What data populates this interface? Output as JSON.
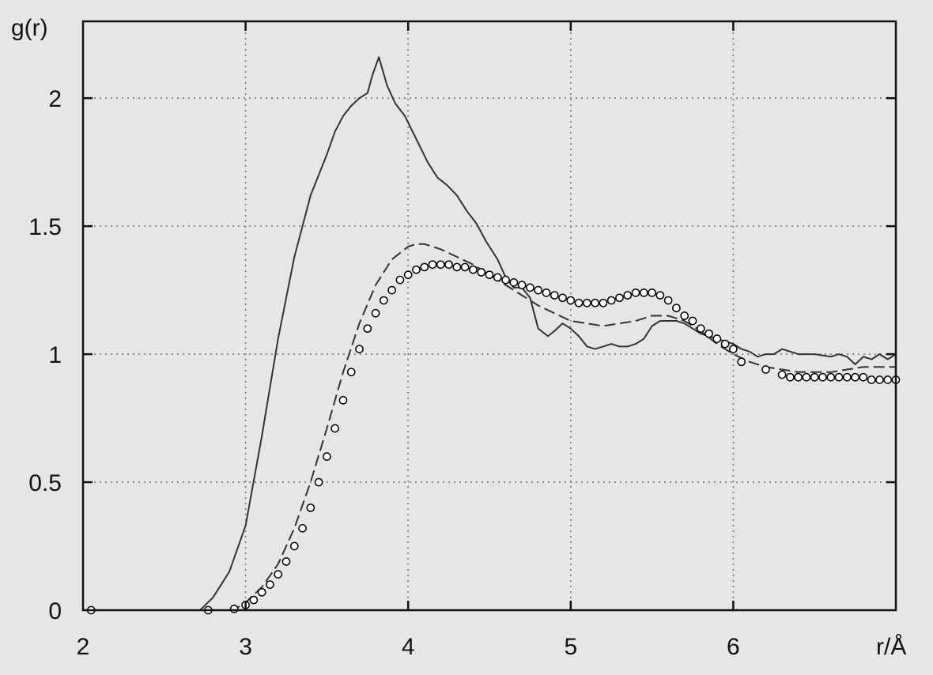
{
  "chart_data": {
    "type": "line",
    "title": "",
    "xlabel": "r/Å",
    "ylabel": "g(r)",
    "xlim": [
      2.0,
      7.0
    ],
    "ylim": [
      0.0,
      2.3
    ],
    "grid": true,
    "legend": "none",
    "xticks": [
      {
        "value": 2,
        "label": "2"
      },
      {
        "value": 3,
        "label": "3"
      },
      {
        "value": 4,
        "label": "4"
      },
      {
        "value": 5,
        "label": "5"
      },
      {
        "value": 6,
        "label": "6"
      }
    ],
    "yticks": [
      {
        "value": 0,
        "label": "0"
      },
      {
        "value": 0.5,
        "label": "0.5"
      },
      {
        "value": 1,
        "label": "1"
      },
      {
        "value": 1.5,
        "label": "1.5"
      },
      {
        "value": 2,
        "label": "2"
      }
    ],
    "series": [
      {
        "style": "solid",
        "color": "#333333",
        "points": [
          [
            2.72,
            0
          ],
          [
            2.8,
            0.05
          ],
          [
            2.9,
            0.15
          ],
          [
            3.0,
            0.33
          ],
          [
            3.1,
            0.68
          ],
          [
            3.2,
            1.06
          ],
          [
            3.3,
            1.38
          ],
          [
            3.4,
            1.62
          ],
          [
            3.5,
            1.78
          ],
          [
            3.55,
            1.87
          ],
          [
            3.6,
            1.93
          ],
          [
            3.65,
            1.97
          ],
          [
            3.7,
            2.0
          ],
          [
            3.75,
            2.02
          ],
          [
            3.78,
            2.09
          ],
          [
            3.82,
            2.16
          ],
          [
            3.87,
            2.05
          ],
          [
            3.92,
            1.98
          ],
          [
            3.98,
            1.93
          ],
          [
            4.05,
            1.84
          ],
          [
            4.12,
            1.75
          ],
          [
            4.18,
            1.69
          ],
          [
            4.24,
            1.66
          ],
          [
            4.3,
            1.62
          ],
          [
            4.36,
            1.56
          ],
          [
            4.42,
            1.51
          ],
          [
            4.48,
            1.44
          ],
          [
            4.55,
            1.37
          ],
          [
            4.6,
            1.3
          ],
          [
            4.65,
            1.26
          ],
          [
            4.7,
            1.26
          ],
          [
            4.75,
            1.22
          ],
          [
            4.8,
            1.1
          ],
          [
            4.86,
            1.07
          ],
          [
            4.9,
            1.09
          ],
          [
            4.95,
            1.12
          ],
          [
            5.0,
            1.1
          ],
          [
            5.05,
            1.07
          ],
          [
            5.1,
            1.03
          ],
          [
            5.15,
            1.02
          ],
          [
            5.2,
            1.03
          ],
          [
            5.25,
            1.04
          ],
          [
            5.3,
            1.03
          ],
          [
            5.35,
            1.03
          ],
          [
            5.4,
            1.04
          ],
          [
            5.45,
            1.06
          ],
          [
            5.5,
            1.11
          ],
          [
            5.55,
            1.13
          ],
          [
            5.6,
            1.13
          ],
          [
            5.65,
            1.13
          ],
          [
            5.7,
            1.12
          ],
          [
            5.75,
            1.1
          ],
          [
            5.8,
            1.08
          ],
          [
            5.85,
            1.07
          ],
          [
            5.9,
            1.06
          ],
          [
            5.95,
            1.05
          ],
          [
            6.0,
            1.04
          ],
          [
            6.05,
            1.02
          ],
          [
            6.1,
            1.01
          ],
          [
            6.15,
            0.99
          ],
          [
            6.2,
            1.0
          ],
          [
            6.25,
            1.0
          ],
          [
            6.3,
            1.02
          ],
          [
            6.35,
            1.01
          ],
          [
            6.4,
            1.0
          ],
          [
            6.5,
            1.0
          ],
          [
            6.6,
            0.99
          ],
          [
            6.65,
            1.0
          ],
          [
            6.7,
            0.99
          ],
          [
            6.75,
            0.96
          ],
          [
            6.8,
            0.99
          ],
          [
            6.85,
            0.98
          ],
          [
            6.9,
            1.0
          ],
          [
            6.95,
            0.98
          ],
          [
            7.0,
            1.0
          ]
        ]
      },
      {
        "style": "dashed",
        "color": "#333333",
        "points": [
          [
            2.9,
            0
          ],
          [
            2.95,
            0.01
          ],
          [
            3.0,
            0.03
          ],
          [
            3.1,
            0.09
          ],
          [
            3.2,
            0.18
          ],
          [
            3.3,
            0.32
          ],
          [
            3.4,
            0.5
          ],
          [
            3.5,
            0.71
          ],
          [
            3.6,
            0.93
          ],
          [
            3.7,
            1.12
          ],
          [
            3.8,
            1.27
          ],
          [
            3.9,
            1.37
          ],
          [
            4.0,
            1.42
          ],
          [
            4.05,
            1.43
          ],
          [
            4.1,
            1.43
          ],
          [
            4.2,
            1.41
          ],
          [
            4.3,
            1.38
          ],
          [
            4.4,
            1.35
          ],
          [
            4.5,
            1.31
          ],
          [
            4.6,
            1.27
          ],
          [
            4.7,
            1.23
          ],
          [
            4.8,
            1.19
          ],
          [
            4.9,
            1.16
          ],
          [
            5.0,
            1.13
          ],
          [
            5.1,
            1.12
          ],
          [
            5.2,
            1.11
          ],
          [
            5.3,
            1.12
          ],
          [
            5.4,
            1.13
          ],
          [
            5.5,
            1.15
          ],
          [
            5.6,
            1.15
          ],
          [
            5.7,
            1.13
          ],
          [
            5.8,
            1.09
          ],
          [
            5.9,
            1.04
          ],
          [
            6.0,
            1.0
          ],
          [
            6.1,
            0.97
          ],
          [
            6.2,
            0.95
          ],
          [
            6.3,
            0.94
          ],
          [
            6.4,
            0.93
          ],
          [
            6.5,
            0.93
          ],
          [
            6.6,
            0.93
          ],
          [
            6.7,
            0.94
          ],
          [
            6.8,
            0.95
          ],
          [
            6.9,
            0.95
          ],
          [
            7.0,
            0.95
          ]
        ]
      },
      {
        "style": "circles",
        "color": "#000000",
        "points": [
          [
            2.05,
            0
          ],
          [
            2.77,
            0
          ],
          [
            2.93,
            0.005
          ],
          [
            3.0,
            0.02
          ],
          [
            3.05,
            0.04
          ],
          [
            3.1,
            0.07
          ],
          [
            3.15,
            0.1
          ],
          [
            3.2,
            0.14
          ],
          [
            3.25,
            0.19
          ],
          [
            3.3,
            0.25
          ],
          [
            3.35,
            0.32
          ],
          [
            3.4,
            0.4
          ],
          [
            3.45,
            0.5
          ],
          [
            3.5,
            0.6
          ],
          [
            3.55,
            0.71
          ],
          [
            3.6,
            0.82
          ],
          [
            3.65,
            0.93
          ],
          [
            3.7,
            1.02
          ],
          [
            3.75,
            1.1
          ],
          [
            3.8,
            1.16
          ],
          [
            3.85,
            1.21
          ],
          [
            3.9,
            1.25
          ],
          [
            3.95,
            1.29
          ],
          [
            4.0,
            1.31
          ],
          [
            4.05,
            1.33
          ],
          [
            4.1,
            1.34
          ],
          [
            4.15,
            1.35
          ],
          [
            4.2,
            1.35
          ],
          [
            4.25,
            1.35
          ],
          [
            4.3,
            1.34
          ],
          [
            4.35,
            1.34
          ],
          [
            4.4,
            1.33
          ],
          [
            4.45,
            1.32
          ],
          [
            4.5,
            1.31
          ],
          [
            4.55,
            1.3
          ],
          [
            4.6,
            1.29
          ],
          [
            4.65,
            1.28
          ],
          [
            4.7,
            1.27
          ],
          [
            4.75,
            1.26
          ],
          [
            4.8,
            1.25
          ],
          [
            4.85,
            1.24
          ],
          [
            4.9,
            1.23
          ],
          [
            4.95,
            1.22
          ],
          [
            5.0,
            1.21
          ],
          [
            5.05,
            1.2
          ],
          [
            5.1,
            1.2
          ],
          [
            5.15,
            1.2
          ],
          [
            5.2,
            1.2
          ],
          [
            5.25,
            1.21
          ],
          [
            5.3,
            1.22
          ],
          [
            5.35,
            1.23
          ],
          [
            5.4,
            1.24
          ],
          [
            5.45,
            1.24
          ],
          [
            5.5,
            1.24
          ],
          [
            5.55,
            1.23
          ],
          [
            5.6,
            1.21
          ],
          [
            5.65,
            1.18
          ],
          [
            5.7,
            1.15
          ],
          [
            5.75,
            1.13
          ],
          [
            5.8,
            1.1
          ],
          [
            5.85,
            1.08
          ],
          [
            5.9,
            1.06
          ],
          [
            5.95,
            1.04
          ],
          [
            6.0,
            1.02
          ],
          [
            6.05,
            0.97
          ],
          [
            6.2,
            0.94
          ],
          [
            6.3,
            0.92
          ],
          [
            6.35,
            0.91
          ],
          [
            6.4,
            0.91
          ],
          [
            6.45,
            0.91
          ],
          [
            6.5,
            0.91
          ],
          [
            6.55,
            0.91
          ],
          [
            6.6,
            0.91
          ],
          [
            6.65,
            0.91
          ],
          [
            6.7,
            0.91
          ],
          [
            6.75,
            0.91
          ],
          [
            6.8,
            0.91
          ],
          [
            6.85,
            0.9
          ],
          [
            6.9,
            0.9
          ],
          [
            6.95,
            0.9
          ],
          [
            7.0,
            0.9
          ]
        ]
      }
    ]
  }
}
